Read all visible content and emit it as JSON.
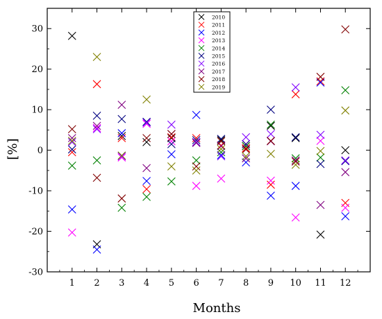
{
  "chart_data": {
    "type": "scatter",
    "xlabel": "Months",
    "ylabel": "[%]",
    "xlim": [
      0,
      13
    ],
    "ylim": [
      -30,
      35
    ],
    "x_ticks": [
      1,
      2,
      3,
      4,
      5,
      6,
      7,
      8,
      9,
      10,
      11,
      12
    ],
    "y_ticks": [
      -30,
      -20,
      -10,
      0,
      10,
      20,
      30
    ],
    "grid": false,
    "legend_position": "top-center",
    "marker": "x",
    "x": [
      1,
      2,
      3,
      4,
      5,
      6,
      7,
      8,
      9,
      10,
      11,
      12
    ],
    "series": [
      {
        "name": "2010",
        "color": "#000000",
        "values": [
          28.2,
          -23.2,
          3.5,
          2.0,
          3.0,
          2.0,
          2.5,
          1.0,
          6.0,
          3.0,
          -20.8,
          0.0
        ]
      },
      {
        "name": "2011",
        "color": "#ff0000",
        "values": [
          -0.5,
          16.3,
          3.0,
          -9.6,
          3.2,
          3.0,
          1.2,
          0.5,
          -8.5,
          13.8,
          17.0,
          -13.0
        ]
      },
      {
        "name": "2012",
        "color": "#0000ff",
        "values": [
          -14.6,
          -24.5,
          4.2,
          -7.6,
          -1.0,
          8.7,
          -1.2,
          -3.0,
          -11.2,
          -8.8,
          16.7,
          -16.3
        ]
      },
      {
        "name": "2013",
        "color": "#ff00ff",
        "values": [
          -20.3,
          5.5,
          -1.8,
          6.5,
          2.2,
          -8.8,
          -7.0,
          1.5,
          -7.5,
          -16.6,
          2.3,
          -14.2
        ]
      },
      {
        "name": "2014",
        "color": "#008000",
        "values": [
          -3.8,
          -2.5,
          -14.2,
          -11.5,
          -7.7,
          -2.5,
          -0.5,
          1.0,
          6.3,
          -2.0,
          -1.8,
          14.8
        ]
      },
      {
        "name": "2015",
        "color": "#000080",
        "values": [
          0.2,
          8.5,
          7.7,
          7.0,
          1.5,
          2.5,
          2.8,
          1.5,
          10.0,
          3.2,
          -3.4,
          -2.7
        ]
      },
      {
        "name": "2016",
        "color": "#8000ff",
        "values": [
          2.0,
          5.2,
          -1.5,
          6.8,
          6.3,
          2.0,
          -1.5,
          3.2,
          4.0,
          15.5,
          3.8,
          -2.5
        ]
      },
      {
        "name": "2017",
        "color": "#800080",
        "values": [
          3.0,
          6.0,
          11.2,
          -4.4,
          4.0,
          1.8,
          1.0,
          -2.0,
          2.2,
          -2.5,
          -13.5,
          -5.4
        ]
      },
      {
        "name": "2018",
        "color": "#800000",
        "values": [
          5.2,
          -6.8,
          -11.9,
          3.0,
          4.0,
          -4.0,
          2.2,
          0.2,
          2.3,
          -2.8,
          18.1,
          29.8
        ]
      },
      {
        "name": "2019",
        "color": "#808000",
        "values": [
          2.3,
          23.0,
          -1.3,
          12.5,
          -4.0,
          -5.0,
          0.3,
          -1.5,
          -0.9,
          -3.6,
          -0.2,
          9.8
        ]
      }
    ]
  }
}
